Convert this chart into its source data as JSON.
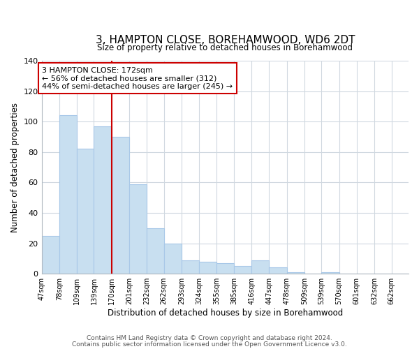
{
  "title": "3, HAMPTON CLOSE, BOREHAMWOOD, WD6 2DT",
  "subtitle": "Size of property relative to detached houses in Borehamwood",
  "xlabel": "Distribution of detached houses by size in Borehamwood",
  "ylabel": "Number of detached properties",
  "bar_color": "#c8dff0",
  "bar_edge_color": "#a8c8e8",
  "bin_labels": [
    "47sqm",
    "78sqm",
    "109sqm",
    "139sqm",
    "170sqm",
    "201sqm",
    "232sqm",
    "262sqm",
    "293sqm",
    "324sqm",
    "355sqm",
    "385sqm",
    "416sqm",
    "447sqm",
    "478sqm",
    "509sqm",
    "539sqm",
    "570sqm",
    "601sqm",
    "632sqm",
    "662sqm"
  ],
  "bar_heights": [
    25,
    104,
    82,
    97,
    90,
    59,
    30,
    20,
    9,
    8,
    7,
    5,
    9,
    4,
    1,
    0,
    1,
    0,
    0,
    0,
    0
  ],
  "property_line_x": 170,
  "ylim": [
    0,
    140
  ],
  "yticks": [
    0,
    20,
    40,
    60,
    80,
    100,
    120,
    140
  ],
  "annotation_text": "3 HAMPTON CLOSE: 172sqm\n← 56% of detached houses are smaller (312)\n44% of semi-detached houses are larger (245) →",
  "annotation_box_color": "white",
  "annotation_box_edge_color": "#cc0000",
  "vline_color": "#cc0000",
  "footer_line1": "Contains HM Land Registry data © Crown copyright and database right 2024.",
  "footer_line2": "Contains public sector information licensed under the Open Government Licence v3.0.",
  "background_color": "white",
  "grid_color": "#d0d8e0"
}
